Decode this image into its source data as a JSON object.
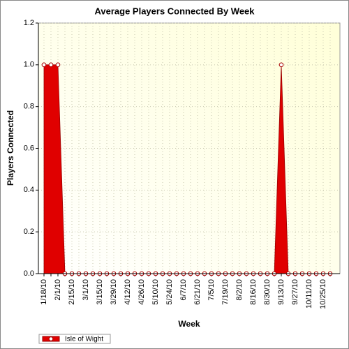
{
  "chart_data": {
    "type": "area",
    "title": "Average Players Connected By Week",
    "x_label": "Week",
    "y_label": "Players Connected",
    "categories": [
      "1/18/10",
      null,
      "2/1/10",
      null,
      "2/15/10",
      null,
      "3/1/10",
      null,
      "3/15/10",
      null,
      "3/29/10",
      null,
      "4/12/10",
      null,
      "4/26/10",
      null,
      "5/10/10",
      null,
      "5/24/10",
      null,
      "6/7/10",
      null,
      "6/21/10",
      null,
      "7/5/10",
      null,
      "7/19/10",
      null,
      "8/2/10",
      null,
      "8/16/10",
      null,
      "8/30/10",
      null,
      "9/13/10",
      null,
      "9/27/10",
      null,
      "10/11/10",
      null,
      "10/25/10",
      null
    ],
    "series": [
      {
        "name": "Isle of Wight",
        "color": "#e00000",
        "values": [
          1,
          1,
          1,
          0,
          0,
          0,
          0,
          0,
          0,
          0,
          0,
          0,
          0,
          0,
          0,
          0,
          0,
          0,
          0,
          0,
          0,
          0,
          0,
          0,
          0,
          0,
          0,
          0,
          0,
          0,
          0,
          0,
          0,
          0,
          1,
          0,
          0,
          0,
          0,
          0,
          0,
          0
        ]
      }
    ],
    "ylim": [
      0,
      1.2
    ],
    "yticks": [
      {
        "value": 0,
        "label": "0.0"
      },
      0.2,
      0.4,
      0.6,
      0.8,
      {
        "value": 1,
        "label": "1.0"
      },
      1.2
    ],
    "grid": true,
    "legend": "bottom-left"
  }
}
